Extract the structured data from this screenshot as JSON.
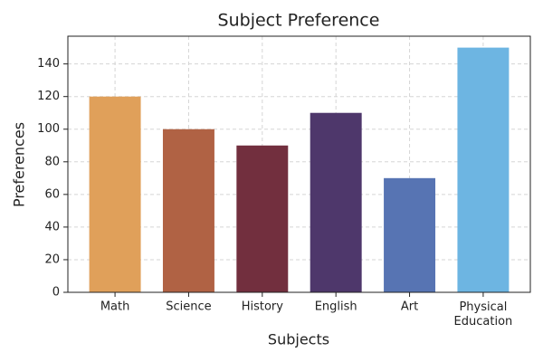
{
  "chart_data": {
    "type": "bar",
    "title": "Subject Preference",
    "x_label": "Subjects",
    "y_label": "Preferences",
    "categories": [
      "Math",
      "Science",
      "History",
      "English",
      "Art",
      "Physical\nEducation"
    ],
    "values": [
      120,
      100,
      90,
      110,
      70,
      150
    ],
    "colors": [
      "#e0a05a",
      "#b06244",
      "#722f3e",
      "#4e376b",
      "#5774b3",
      "#6db5e2"
    ],
    "ylim": [
      0,
      157
    ],
    "yticks": [
      0,
      20,
      40,
      60,
      80,
      100,
      120,
      140
    ],
    "grid": true
  }
}
